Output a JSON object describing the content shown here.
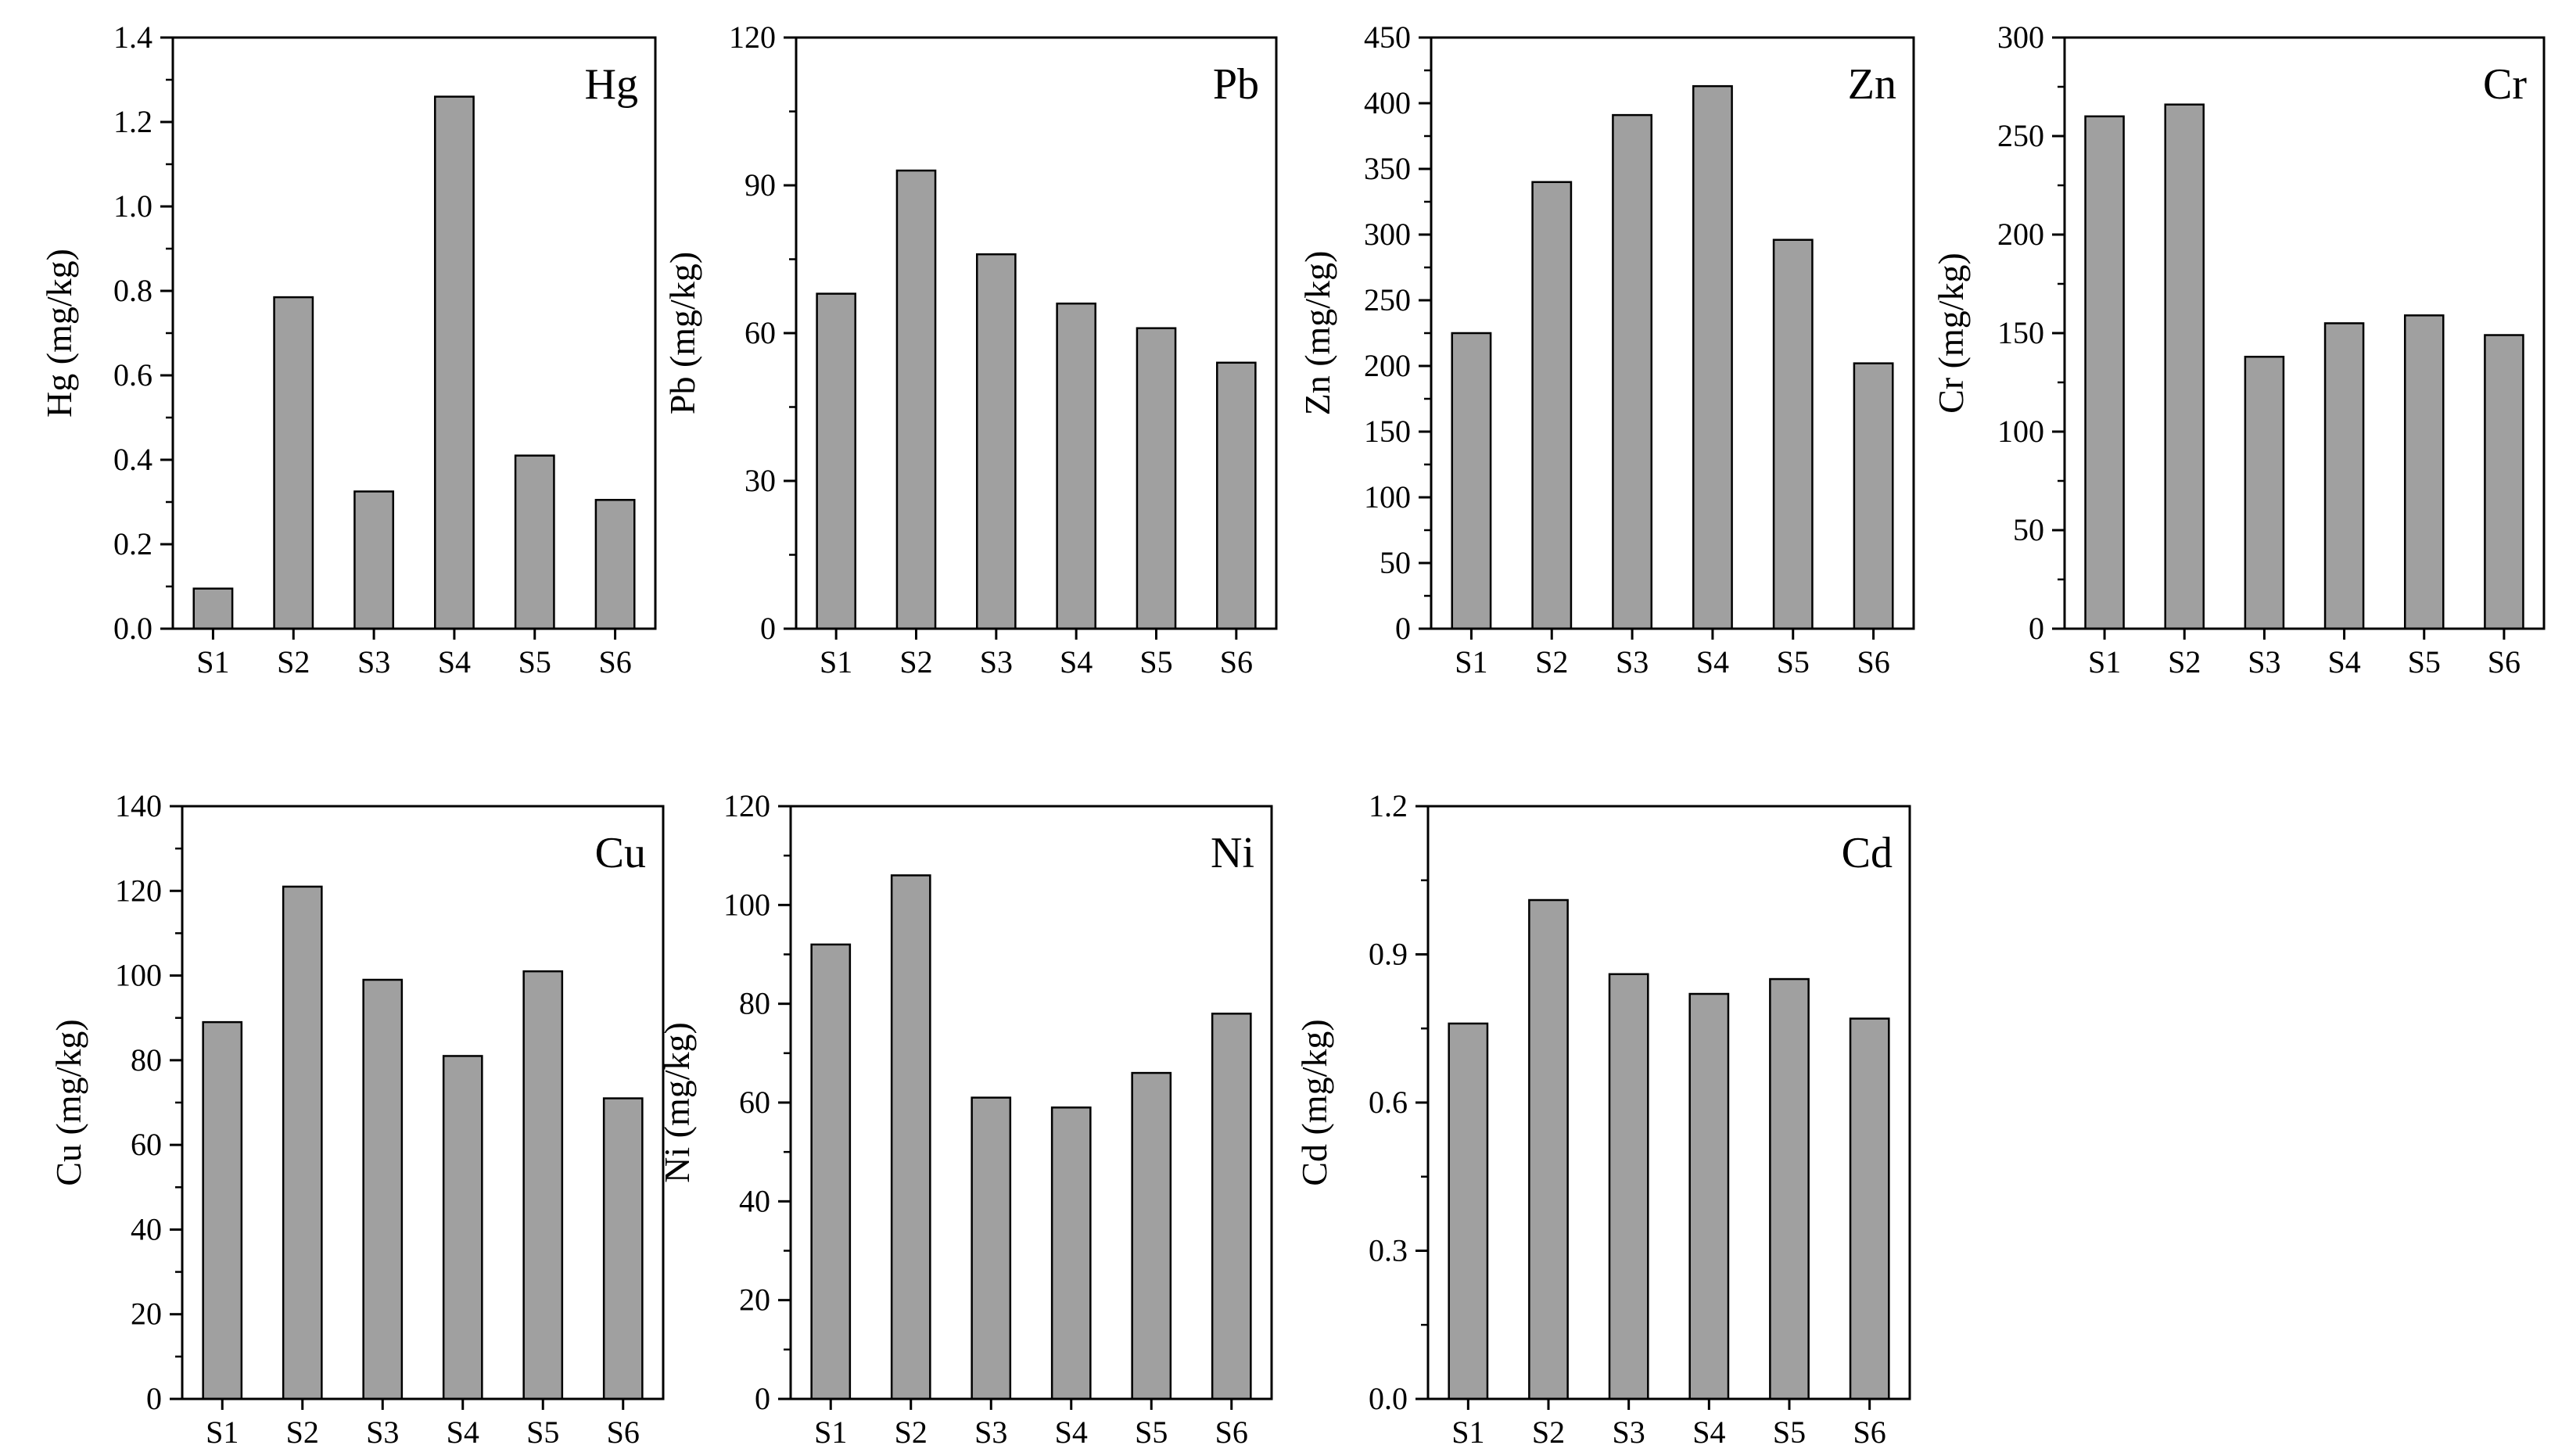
{
  "chart_data": [
    {
      "type": "bar",
      "title": "Hg",
      "xlabel": "",
      "ylabel": "Hg (mg/kg)",
      "categories": [
        "S1",
        "S2",
        "S3",
        "S4",
        "S5",
        "S6"
      ],
      "values": [
        0.095,
        0.785,
        0.325,
        1.26,
        0.41,
        0.305
      ],
      "ylim": [
        0,
        1.4
      ],
      "yticks": [
        "0.0",
        "0.2",
        "0.4",
        "0.6",
        "0.8",
        "1.0",
        "1.2",
        "1.4"
      ],
      "bar_color": "#a0a0a0"
    },
    {
      "type": "bar",
      "title": "Pb",
      "xlabel": "",
      "ylabel": "Pb (mg/kg)",
      "categories": [
        "S1",
        "S2",
        "S3",
        "S4",
        "S5",
        "S6"
      ],
      "values": [
        68,
        93,
        76,
        66,
        61,
        54
      ],
      "ylim": [
        0,
        120
      ],
      "yticks": [
        "0",
        "30",
        "60",
        "90",
        "120"
      ],
      "bar_color": "#a0a0a0"
    },
    {
      "type": "bar",
      "title": "Zn",
      "xlabel": "",
      "ylabel": "Zn (mg/kg)",
      "categories": [
        "S1",
        "S2",
        "S3",
        "S4",
        "S5",
        "S6"
      ],
      "values": [
        225,
        340,
        391,
        413,
        296,
        202
      ],
      "ylim": [
        0,
        450
      ],
      "yticks": [
        "0",
        "50",
        "100",
        "150",
        "200",
        "250",
        "300",
        "350",
        "400",
        "450"
      ],
      "bar_color": "#a0a0a0"
    },
    {
      "type": "bar",
      "title": "Cr",
      "xlabel": "",
      "ylabel": "Cr (mg/kg)",
      "categories": [
        "S1",
        "S2",
        "S3",
        "S4",
        "S5",
        "S6"
      ],
      "values": [
        260,
        266,
        138,
        155,
        159,
        149
      ],
      "ylim": [
        0,
        300
      ],
      "yticks": [
        "0",
        "50",
        "100",
        "150",
        "200",
        "250",
        "300"
      ],
      "bar_color": "#a0a0a0"
    },
    {
      "type": "bar",
      "title": "Cu",
      "xlabel": "",
      "ylabel": "Cu (mg/kg)",
      "categories": [
        "S1",
        "S2",
        "S3",
        "S4",
        "S5",
        "S6"
      ],
      "values": [
        89,
        121,
        99,
        81,
        101,
        71
      ],
      "ylim": [
        0,
        140
      ],
      "yticks": [
        "0",
        "20",
        "40",
        "60",
        "80",
        "100",
        "120",
        "140"
      ],
      "bar_color": "#a0a0a0"
    },
    {
      "type": "bar",
      "title": "Ni",
      "xlabel": "",
      "ylabel": "Ni (mg/kg)",
      "categories": [
        "S1",
        "S2",
        "S3",
        "S4",
        "S5",
        "S6"
      ],
      "values": [
        92,
        106,
        61,
        59,
        66,
        78
      ],
      "ylim": [
        0,
        120
      ],
      "yticks": [
        "0",
        "20",
        "40",
        "60",
        "80",
        "100",
        "120"
      ],
      "bar_color": "#a0a0a0"
    },
    {
      "type": "bar",
      "title": "Cd",
      "xlabel": "",
      "ylabel": "Cd (mg/kg)",
      "categories": [
        "S1",
        "S2",
        "S3",
        "S4",
        "S5",
        "S6"
      ],
      "values": [
        0.76,
        1.01,
        0.86,
        0.82,
        0.85,
        0.77
      ],
      "ylim": [
        0,
        1.2
      ],
      "yticks": [
        "0.0",
        "0.3",
        "0.6",
        "0.9",
        "1.2"
      ],
      "bar_color": "#a0a0a0"
    }
  ]
}
